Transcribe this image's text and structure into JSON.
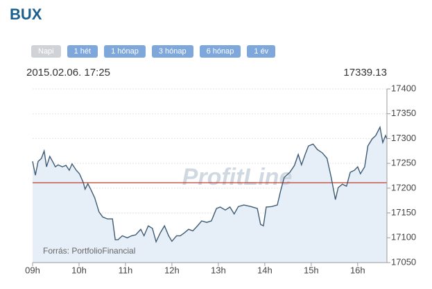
{
  "chart_data": {
    "type": "area",
    "title": "BUX",
    "range_buttons": [
      "Napi",
      "1 hét",
      "1 hónap",
      "3 hónap",
      "6 hónap",
      "1 év"
    ],
    "active_button": 0,
    "timestamp": "2015.02.06. 17:25",
    "last_value": "17339.13",
    "watermark": "ProfitLine",
    "source": "Forrás: PortfolioFinancial",
    "line_color": "#3d5a73",
    "fill_color": "#e6eef7",
    "reference_line": 17211,
    "reference_color": "#c0392b",
    "grid": true,
    "xlim": [
      9,
      16.63
    ],
    "xticks": [
      {
        "value": 9,
        "label": "09h"
      },
      {
        "value": 10,
        "label": "10h"
      },
      {
        "value": 11,
        "label": "11h"
      },
      {
        "value": 12,
        "label": "12h"
      },
      {
        "value": 13,
        "label": "13h"
      },
      {
        "value": 14,
        "label": "14h"
      },
      {
        "value": 15,
        "label": "15h"
      },
      {
        "value": 16,
        "label": "16h"
      }
    ],
    "ylim": [
      17050,
      17400
    ],
    "yticks": [
      17050,
      17100,
      17150,
      17200,
      17250,
      17300,
      17350,
      17400
    ],
    "x": [
      9,
      9.06,
      9.12,
      9.19,
      9.25,
      9.3,
      9.37,
      9.43,
      9.49,
      9.55,
      9.64,
      9.72,
      9.79,
      9.85,
      9.94,
      10.01,
      10.09,
      10.13,
      10.19,
      10.27,
      10.34,
      10.43,
      10.51,
      10.61,
      10.72,
      10.78,
      10.84,
      10.93,
      11.04,
      11.13,
      11.22,
      11.33,
      11.4,
      11.49,
      11.58,
      11.66,
      11.75,
      11.84,
      11.93,
      12,
      12.1,
      12.18,
      12.27,
      12.36,
      12.45,
      12.55,
      12.64,
      12.75,
      12.85,
      12.96,
      13.04,
      13.15,
      13.25,
      13.34,
      13.43,
      13.55,
      13.7,
      13.84,
      13.91,
      13.97,
      14.03,
      14.15,
      14.27,
      14.34,
      14.42,
      14.54,
      14.64,
      14.72,
      14.79,
      14.87,
      14.94,
      15.04,
      15.13,
      15.24,
      15.34,
      15.43,
      15.52,
      15.58,
      15.67,
      15.76,
      15.84,
      15.93,
      16,
      16.06,
      16.15,
      16.22,
      16.31,
      16.39,
      16.48,
      16.54,
      16.6,
      16.63
    ],
    "values": [
      17254,
      17226,
      17254,
      17260,
      17275,
      17243,
      17264,
      17254,
      17243,
      17247,
      17243,
      17246,
      17236,
      17249,
      17236,
      17229,
      17212,
      17198,
      17209,
      17194,
      17180,
      17152,
      17142,
      17138,
      17138,
      17096,
      17096,
      17104,
      17100,
      17104,
      17106,
      17117,
      17104,
      17124,
      17119,
      17092,
      17110,
      17124,
      17104,
      17093,
      17104,
      17104,
      17110,
      17117,
      17114,
      17124,
      17134,
      17131,
      17134,
      17159,
      17162,
      17156,
      17162,
      17148,
      17163,
      17166,
      17163,
      17159,
      17127,
      17124,
      17162,
      17163,
      17166,
      17194,
      17222,
      17232,
      17246,
      17268,
      17247,
      17268,
      17285,
      17289,
      17278,
      17271,
      17260,
      17222,
      17177,
      17201,
      17208,
      17204,
      17232,
      17236,
      17243,
      17229,
      17243,
      17285,
      17299,
      17306,
      17323,
      17292,
      17306,
      17299
    ]
  }
}
